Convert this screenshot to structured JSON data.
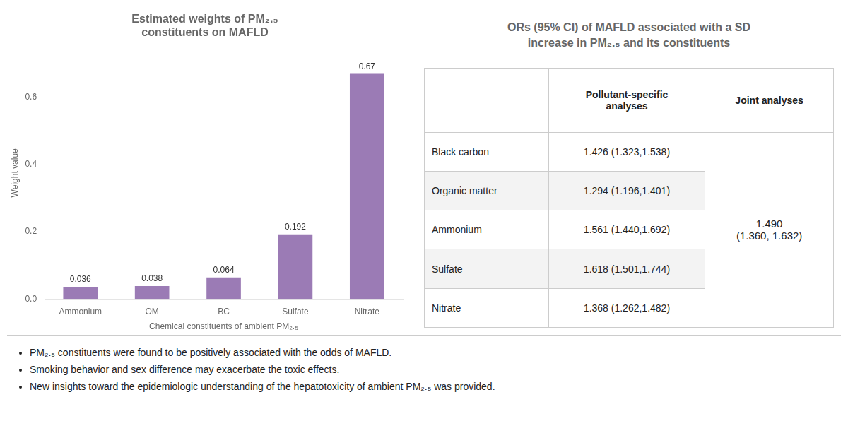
{
  "chart_data": {
    "type": "bar",
    "title": "Estimated weights of PM₂.₅\nconstituents on MAFLD",
    "xlabel": "Chemical constituents of ambient PM₂.₅",
    "ylabel": "Weight value",
    "categories": [
      "Ammonium",
      "OM",
      "BC",
      "Sulfate",
      "Nitrate"
    ],
    "values": [
      0.036,
      0.038,
      0.064,
      0.192,
      0.67
    ],
    "color": "#9B7BB5",
    "ylim": [
      0,
      0.75
    ],
    "yticks": [
      {
        "value": 0,
        "label": "0.0"
      },
      0.2,
      0.4,
      0.6
    ],
    "grid": false,
    "data_labels": true,
    "table": {
      "title": "ORs (95% CI) of MAFLD associated with a SD\nincrease in PM₂.₅ and its constituents",
      "columns": [
        "Pollutant-specific\nanalyses",
        "Joint analyses"
      ],
      "rows": [
        [
          "Black carbon",
          "1.426 (1.323,1.538)"
        ],
        [
          "Organic matter",
          "1.294 (1.196,1.401)"
        ],
        [
          "Ammonium",
          "1.561 (1.440,1.692)"
        ],
        [
          "Sulfate",
          "1.618 (1.501,1.744)"
        ],
        [
          "Nitrate",
          "1.368 (1.262,1.482)"
        ]
      ],
      "joint_value": "1.490\n(1.360, 1.632)"
    },
    "annotations": [
      "PM₂.₅ constituents were found to be positively associated with the odds of MAFLD.",
      "Smoking behavior and sex difference may exacerbate the toxic effects.",
      "New insights toward the epidemiologic understanding of the hepatotoxicity of ambient PM₂.₅ was provided."
    ]
  }
}
